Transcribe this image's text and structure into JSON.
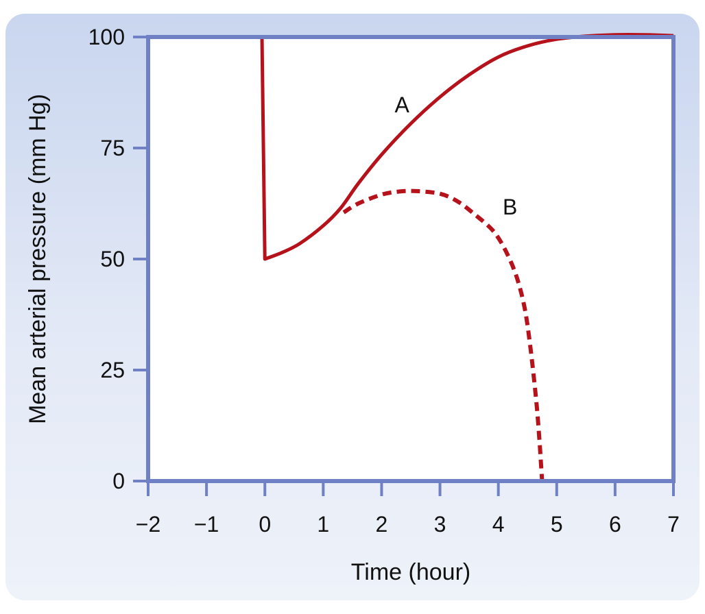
{
  "chart_data": {
    "type": "line",
    "xlabel": "Time (hour)",
    "ylabel": "Mean arterial pressure (mm Hg)",
    "xlim": [
      -2,
      7
    ],
    "ylim": [
      0,
      100
    ],
    "x_ticks": [
      -2,
      -1,
      0,
      1,
      2,
      3,
      4,
      5,
      6,
      7
    ],
    "x_tick_labels": [
      "−2",
      "−1",
      "0",
      "1",
      "2",
      "3",
      "4",
      "5",
      "6",
      "7"
    ],
    "y_ticks": [
      0,
      25,
      50,
      75,
      100
    ],
    "y_tick_labels": [
      "0",
      "25",
      "50",
      "75",
      "100"
    ],
    "grid": false,
    "colors": {
      "line": "#b5121b",
      "frame": "#7080c4",
      "plot_bg": "#ffffff"
    },
    "series": [
      {
        "name": "A",
        "style": "solid",
        "x": [
          -2,
          -0.05,
          -0.05,
          0.0,
          0.3,
          0.6,
          1.0,
          1.3,
          1.6,
          2.0,
          2.5,
          3.0,
          3.5,
          4.0,
          4.5,
          5.0,
          5.5,
          6.0,
          6.5,
          7.0
        ],
        "y": [
          100,
          100,
          100,
          50,
          51.5,
          53.5,
          57.5,
          61.5,
          67,
          73.5,
          80.5,
          86.5,
          91.5,
          95.5,
          98,
          99.5,
          100.2,
          100.5,
          100.5,
          100.3
        ]
      },
      {
        "name": "B",
        "style": "dashed",
        "x": [
          1.35,
          1.6,
          2.0,
          2.3,
          2.6,
          3.0,
          3.3,
          3.6,
          3.9,
          4.1,
          4.3,
          4.45,
          4.55,
          4.65,
          4.7,
          4.73,
          4.75
        ],
        "y": [
          60.5,
          62.5,
          64.5,
          65.2,
          65.3,
          64.7,
          63,
          60,
          56.5,
          52.5,
          46.5,
          39,
          30,
          18,
          10,
          4,
          0
        ]
      }
    ],
    "annotations": [
      {
        "text": "A",
        "x": 2.35,
        "y": 83
      },
      {
        "text": "B",
        "x": 4.2,
        "y": 60
      }
    ]
  }
}
